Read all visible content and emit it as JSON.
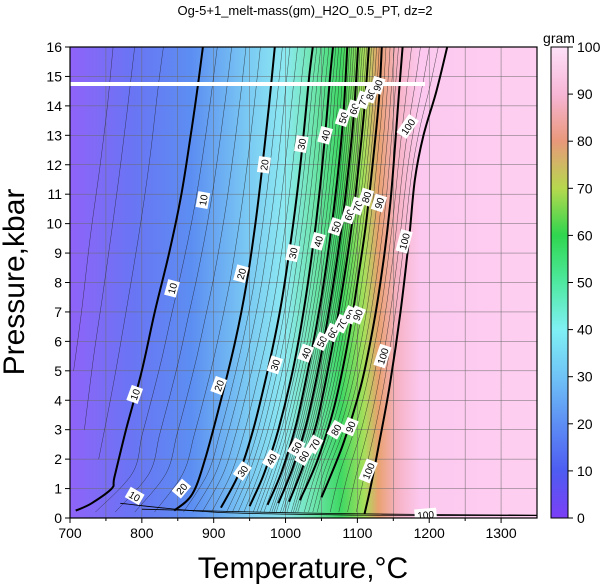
{
  "chart_data": {
    "type": "heatmap",
    "title": "Og-5+1_melt-mass(gm)_H2O_0.5_PT, dz=2",
    "xlabel": "Temperature,°C",
    "ylabel": "Pressure,kbar",
    "xlim": [
      700,
      1350
    ],
    "ylim": [
      0,
      16
    ],
    "x_ticks": [
      700,
      800,
      900,
      1000,
      1100,
      1200,
      1300
    ],
    "y_ticks": [
      0,
      1,
      2,
      3,
      4,
      5,
      6,
      7,
      8,
      9,
      10,
      11,
      12,
      13,
      14,
      15,
      16
    ],
    "grid": true,
    "colorbar": {
      "label": "gram",
      "range": [
        0,
        100
      ],
      "ticks": [
        0,
        10,
        20,
        30,
        40,
        50,
        60,
        70,
        80,
        90,
        100
      ]
    },
    "major_contours": [
      {
        "level": 10,
        "label": "10",
        "points": [
          [
            708,
            0.25
          ],
          [
            730,
            0.5
          ],
          [
            758,
            1.0
          ],
          [
            762,
            1.4
          ],
          [
            778,
            3
          ],
          [
            800,
            5
          ],
          [
            818,
            7
          ],
          [
            838,
            9
          ],
          [
            855,
            11
          ],
          [
            868,
            13
          ],
          [
            878,
            14.7
          ],
          [
            885,
            16
          ]
        ]
      },
      {
        "level": 20,
        "label": "20",
        "points": [
          [
            845,
            0.25
          ],
          [
            870,
            0.8
          ],
          [
            888,
            2
          ],
          [
            910,
            4
          ],
          [
            930,
            6
          ],
          [
            946,
            8
          ],
          [
            958,
            10
          ],
          [
            968,
            12
          ],
          [
            977,
            14
          ],
          [
            985,
            16
          ]
        ]
      },
      {
        "level": 30,
        "label": "30",
        "points": [
          [
            910,
            0.35
          ],
          [
            935,
            1.5
          ],
          [
            955,
            3
          ],
          [
            975,
            5
          ],
          [
            992,
            7
          ],
          [
            1005,
            9
          ],
          [
            1016,
            11
          ],
          [
            1025,
            13
          ],
          [
            1033,
            15
          ],
          [
            1038,
            16
          ]
        ]
      },
      {
        "level": 40,
        "label": "40",
        "points": [
          [
            950,
            0.4
          ],
          [
            970,
            1.5
          ],
          [
            990,
            3
          ],
          [
            1010,
            5
          ],
          [
            1025,
            7
          ],
          [
            1037,
            9
          ],
          [
            1047,
            11
          ],
          [
            1055,
            13
          ],
          [
            1062,
            15
          ],
          [
            1066,
            16
          ]
        ]
      },
      {
        "level": 50,
        "label": "50",
        "points": [
          [
            975,
            0.45
          ],
          [
            995,
            1.6
          ],
          [
            1015,
            3.2
          ],
          [
            1035,
            5.5
          ],
          [
            1050,
            7.5
          ],
          [
            1062,
            9.5
          ],
          [
            1072,
            11.5
          ],
          [
            1080,
            13.5
          ],
          [
            1086,
            16
          ]
        ]
      },
      {
        "level": 60,
        "label": "60",
        "points": [
          [
            990,
            0.5
          ],
          [
            1010,
            1.7
          ],
          [
            1030,
            3.3
          ],
          [
            1050,
            5.6
          ],
          [
            1065,
            7.7
          ],
          [
            1077,
            9.7
          ],
          [
            1087,
            11.7
          ],
          [
            1095,
            13.7
          ],
          [
            1101,
            16
          ]
        ]
      },
      {
        "level": 70,
        "label": "70",
        "points": [
          [
            1005,
            0.55
          ],
          [
            1025,
            1.8
          ],
          [
            1045,
            3.4
          ],
          [
            1065,
            5.8
          ],
          [
            1080,
            7.9
          ],
          [
            1092,
            9.9
          ],
          [
            1102,
            12
          ],
          [
            1110,
            14
          ],
          [
            1116,
            16
          ]
        ]
      },
      {
        "level": 80,
        "label": "80",
        "points": [
          [
            1020,
            0.6
          ],
          [
            1045,
            2
          ],
          [
            1068,
            3.8
          ],
          [
            1087,
            6
          ],
          [
            1100,
            8
          ],
          [
            1112,
            10
          ],
          [
            1122,
            12.2
          ],
          [
            1130,
            14.2
          ],
          [
            1134,
            16
          ]
        ]
      },
      {
        "level": 90,
        "label": "90",
        "points": [
          [
            1050,
            0.7
          ],
          [
            1080,
            2.5
          ],
          [
            1105,
            4.5
          ],
          [
            1122,
            6.5
          ],
          [
            1135,
            8.5
          ],
          [
            1145,
            10.5
          ],
          [
            1152,
            12.5
          ],
          [
            1158,
            14.5
          ],
          [
            1163,
            16
          ]
        ]
      },
      {
        "level": 100,
        "label": "100",
        "points": [
          [
            1110,
            0.15
          ],
          [
            1118,
            1
          ],
          [
            1130,
            2.5
          ],
          [
            1145,
            4.5
          ],
          [
            1160,
            7
          ],
          [
            1172,
            9.5
          ],
          [
            1180,
            11.5
          ],
          [
            1192,
            13
          ],
          [
            1210,
            14.5
          ],
          [
            1225,
            16
          ]
        ]
      }
    ],
    "contour_labels": [
      {
        "text": "10",
        "x": 885,
        "y": 10.8,
        "angle": -80
      },
      {
        "text": "10",
        "x": 842,
        "y": 7.8,
        "angle": -75
      },
      {
        "text": "10",
        "x": 790,
        "y": 4.2,
        "angle": -70
      },
      {
        "text": "10",
        "x": 790,
        "y": 0.75,
        "angle": 30
      },
      {
        "text": "20",
        "x": 970,
        "y": 12,
        "angle": -82
      },
      {
        "text": "20",
        "x": 938,
        "y": 8.3,
        "angle": -75
      },
      {
        "text": "20",
        "x": 907,
        "y": 4.5,
        "angle": -70
      },
      {
        "text": "20",
        "x": 855,
        "y": 1.0,
        "angle": -50
      },
      {
        "text": "30",
        "x": 1022,
        "y": 12.7,
        "angle": -80
      },
      {
        "text": "30",
        "x": 1010,
        "y": 9.0,
        "angle": -78
      },
      {
        "text": "30",
        "x": 985,
        "y": 5.2,
        "angle": -72
      },
      {
        "text": "30",
        "x": 940,
        "y": 1.6,
        "angle": -55
      },
      {
        "text": "40",
        "x": 1055,
        "y": 13.0,
        "angle": -75
      },
      {
        "text": "40",
        "x": 1045,
        "y": 9.4,
        "angle": -75
      },
      {
        "text": "40",
        "x": 1028,
        "y": 5.6,
        "angle": -70
      },
      {
        "text": "40",
        "x": 980,
        "y": 2.0,
        "angle": -60
      },
      {
        "text": "50",
        "x": 1080,
        "y": 13.6,
        "angle": -72
      },
      {
        "text": "50",
        "x": 1070,
        "y": 9.9,
        "angle": -72
      },
      {
        "text": "50",
        "x": 1050,
        "y": 6.0,
        "angle": -65
      },
      {
        "text": "50",
        "x": 1015,
        "y": 2.4,
        "angle": -60
      },
      {
        "text": "60",
        "x": 1095,
        "y": 13.9,
        "angle": -72
      },
      {
        "text": "60",
        "x": 1088,
        "y": 10.3,
        "angle": -72
      },
      {
        "text": "60",
        "x": 1065,
        "y": 6.3,
        "angle": -65
      },
      {
        "text": "60",
        "x": 1025,
        "y": 2.1,
        "angle": -60
      },
      {
        "text": "70",
        "x": 1108,
        "y": 14.2,
        "angle": -72
      },
      {
        "text": "70",
        "x": 1100,
        "y": 10.6,
        "angle": -72
      },
      {
        "text": "70",
        "x": 1078,
        "y": 6.6,
        "angle": -65
      },
      {
        "text": "70",
        "x": 1040,
        "y": 2.5,
        "angle": -60
      },
      {
        "text": "80",
        "x": 1118,
        "y": 14.4,
        "angle": -72
      },
      {
        "text": "80",
        "x": 1112,
        "y": 10.9,
        "angle": -72
      },
      {
        "text": "80",
        "x": 1090,
        "y": 6.9,
        "angle": -65
      },
      {
        "text": "80",
        "x": 1070,
        "y": 3.0,
        "angle": -60
      },
      {
        "text": "90",
        "x": 1128,
        "y": 14.7,
        "angle": -72
      },
      {
        "text": "90",
        "x": 1130,
        "y": 10.7,
        "angle": -72
      },
      {
        "text": "90",
        "x": 1100,
        "y": 6.9,
        "angle": -68
      },
      {
        "text": "90",
        "x": 1090,
        "y": 3.1,
        "angle": -68
      },
      {
        "text": "100",
        "x": 1170,
        "y": 13.3,
        "angle": -55
      },
      {
        "text": "100",
        "x": 1165,
        "y": 9.4,
        "angle": -75
      },
      {
        "text": "100",
        "x": 1135,
        "y": 5.5,
        "angle": -72
      },
      {
        "text": "100",
        "x": 1115,
        "y": 1.6,
        "angle": -68
      },
      {
        "text": "100",
        "x": 1195,
        "y": 0.12,
        "angle": -5
      }
    ]
  }
}
